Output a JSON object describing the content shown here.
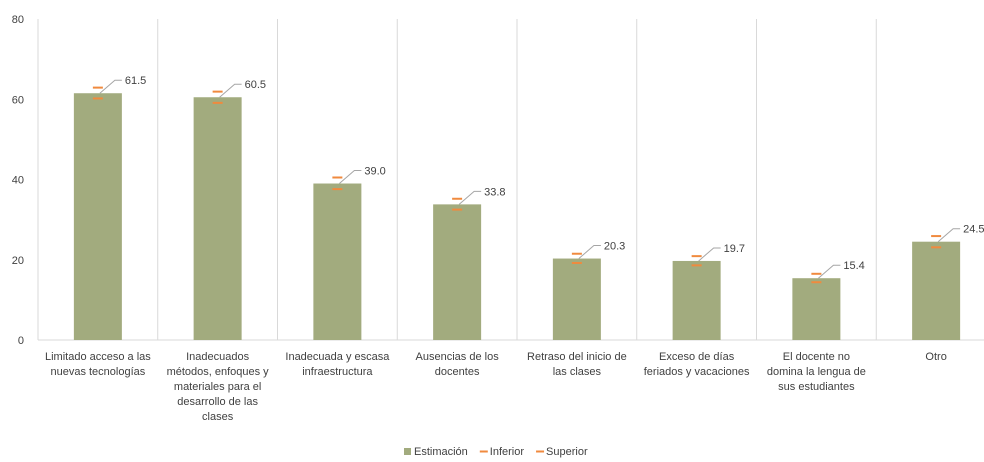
{
  "chart_data": {
    "type": "bar",
    "categories": [
      [
        "Limitado acceso a las",
        "nuevas tecnologías"
      ],
      [
        "Inadecuados",
        "métodos, enfoques y",
        "materiales para el",
        "desarrollo de las",
        "clases"
      ],
      [
        "Inadecuada y escasa",
        "infraestructura"
      ],
      [
        "Ausencias de los",
        "docentes"
      ],
      [
        "Retraso del inicio de",
        "las clases"
      ],
      [
        "Exceso de días",
        "feriados y vacaciones"
      ],
      [
        "El docente no",
        "domina la lengua de",
        "sus estudiantes"
      ],
      [
        "Otro"
      ]
    ],
    "series": [
      {
        "name": "Estimación",
        "values": [
          61.5,
          60.5,
          39.0,
          33.8,
          20.3,
          19.7,
          15.4,
          24.5
        ]
      },
      {
        "name": "Inferior",
        "values": [
          60.2,
          59.1,
          37.6,
          32.5,
          19.2,
          18.6,
          14.4,
          23.1
        ]
      },
      {
        "name": "Superior",
        "values": [
          62.9,
          61.9,
          40.5,
          35.2,
          21.5,
          20.9,
          16.5,
          25.9
        ]
      }
    ],
    "data_labels": [
      "61.5",
      "60.5",
      "39.0",
      "33.8",
      "20.3",
      "19.7",
      "15.4",
      "24.5"
    ],
    "y_ticks": [
      0,
      20,
      40,
      60,
      80
    ],
    "ylim": [
      0,
      80
    ],
    "grid": "vertical category separators",
    "legend_position": "bottom",
    "colors": {
      "bar": "#a2ab7e",
      "error_marker": "#f08a3e",
      "leader_line": "#a6a6a6",
      "grid": "#d9d9d9"
    }
  }
}
